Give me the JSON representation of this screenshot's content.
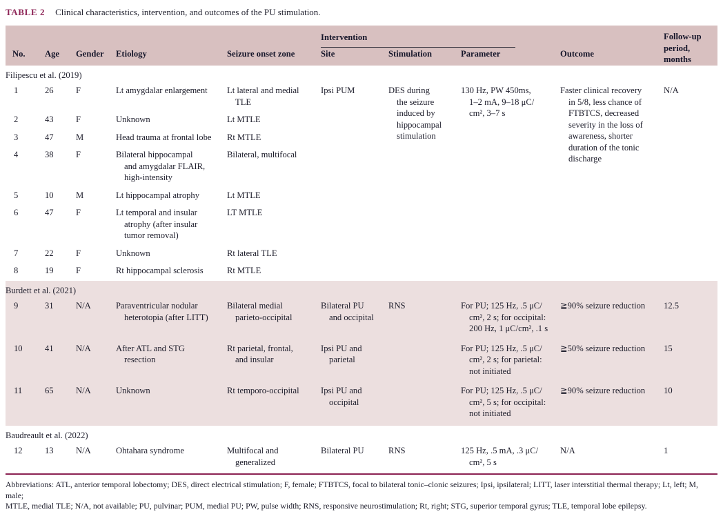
{
  "title": {
    "label": "TABLE 2",
    "caption": "Clinical characteristics, intervention, and outcomes of the PU stimulation."
  },
  "colors": {
    "accent_maroon": "#8b2252",
    "title_maroon": "#8e2557",
    "header_band": "#d8c0c0",
    "shaded_band": "#ecdfdf",
    "text": "#1d1d2b"
  },
  "header": {
    "intervention_group": "Intervention",
    "columns": [
      "No.",
      "Age",
      "Gender",
      "Etiology",
      "Seizure onset zone",
      "Site",
      "Stimulation",
      "Parameter",
      "Outcome"
    ],
    "followup_column": "Follow-up\nperiod,\nmonths"
  },
  "groups": [
    {
      "source": "Filipescu et al. (2019)",
      "rows": [
        {
          "no": "1",
          "age": "26",
          "gender": "F",
          "etiology": "Lt amygdalar enlargement",
          "zone": "Lt lateral and medial\nTLE",
          "site": "Ipsi PUM",
          "stimulation": "DES during\nthe seizure\ninduced by\nhippocampal\nstimulation",
          "parameter": "130 Hz, PW 450ms,\n1–2 mA, 9–18 μC/\ncm², 3–7 s",
          "outcome": "Faster clinical recovery\nin 5/8, less chance of\nFTBTCS, decreased\nseverity in the loss of\nawareness, shorter\nduration of the tonic\ndischarge",
          "followup": "N/A"
        },
        {
          "no": "2",
          "age": "43",
          "gender": "F",
          "etiology": "Unknown",
          "zone": "Lt MTLE"
        },
        {
          "no": "3",
          "age": "47",
          "gender": "M",
          "etiology": "Head trauma at frontal lobe",
          "zone": "Rt MTLE"
        },
        {
          "no": "4",
          "age": "38",
          "gender": "F",
          "etiology": "Bilateral hippocampal\nand amygdalar FLAIR,\nhigh-intensity",
          "zone": "Bilateral, multifocal"
        },
        {
          "no": "5",
          "age": "10",
          "gender": "M",
          "etiology": "Lt hippocampal atrophy",
          "zone": "Lt MTLE"
        },
        {
          "no": "6",
          "age": "47",
          "gender": "F",
          "etiology": "Lt temporal and insular\natrophy (after insular\ntumor removal)",
          "zone": "LT MTLE"
        },
        {
          "no": "7",
          "age": "22",
          "gender": "F",
          "etiology": "Unknown",
          "zone": "Rt lateral TLE"
        },
        {
          "no": "8",
          "age": "19",
          "gender": "F",
          "etiology": "Rt hippocampal sclerosis",
          "zone": "Rt MTLE"
        }
      ]
    },
    {
      "source": "Burdett et al. (2021)",
      "rows": [
        {
          "no": "9",
          "age": "31",
          "gender": "N/A",
          "etiology": "Paraventricular nodular\nheterotopia (after LITT)",
          "zone": "Bilateral medial\nparieto-occipital",
          "site": "Bilateral PU\nand occipital",
          "stimulation": "RNS",
          "parameter": "For PU; 125 Hz, .5 μC/\ncm², 2 s; for occipital:\n200 Hz, 1 μC/cm², .1 s",
          "outcome": "≧90% seizure reduction",
          "followup": "12.5"
        },
        {
          "no": "10",
          "age": "41",
          "gender": "N/A",
          "etiology": "After ATL and STG\nresection",
          "zone": "Rt parietal, frontal,\nand insular",
          "site": "Ipsi PU and\nparietal",
          "parameter": "For PU; 125 Hz, .5 μC/\ncm², 2 s; for parietal:\nnot initiated",
          "outcome": "≧50% seizure reduction",
          "followup": "15"
        },
        {
          "no": "11",
          "age": "65",
          "gender": "N/A",
          "etiology": "Unknown",
          "zone": "Rt temporo-occipital",
          "site": "Ipsi PU and\noccipital",
          "parameter": "For PU; 125 Hz, .5 μC/\ncm², 5 s; for occipital:\nnot initiated",
          "outcome": "≧90% seizure reduction",
          "followup": "10"
        }
      ]
    },
    {
      "source": "Baudreault et al. (2022)",
      "rows": [
        {
          "no": "12",
          "age": "13",
          "gender": "N/A",
          "etiology": "Ohtahara syndrome",
          "zone": "Multifocal and\ngeneralized",
          "site": "Bilateral PU",
          "stimulation": "RNS",
          "parameter": "125 Hz, .5 mA, .3 μC/\ncm², 5 s",
          "outcome": "N/A",
          "followup": "1"
        }
      ]
    }
  ],
  "footnote_lines": [
    "Abbreviations: ATL, anterior temporal lobectomy; DES, direct electrical stimulation; F, female; FTBTCS, focal to bilateral tonic–clonic seizures; Ipsi, ipsilateral; LITT, laser interstitial thermal therapy; Lt, left; M, male;",
    "MTLE, medial TLE; N/A, not available; PU, pulvinar; PUM, medial PU; PW, pulse width; RNS, responsive neurostimulation; Rt, right; STG, superior temporal gyrus; TLE, temporal lobe epilepsy."
  ]
}
